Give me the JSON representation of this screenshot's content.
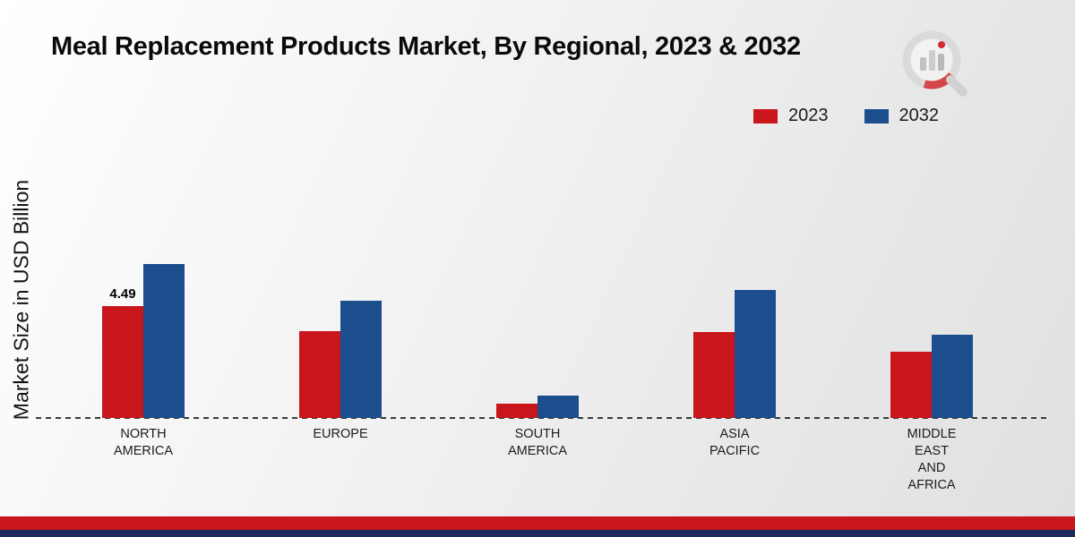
{
  "page": {
    "title": "Meal Replacement Products Market, By Regional, 2023 & 2032",
    "ylabel": "Market Size in USD Billion"
  },
  "chart_data": {
    "type": "bar",
    "title": "Meal Replacement Products Market, By Regional, 2023 & 2032",
    "ylabel": "Market Size in USD Billion",
    "categories": [
      "NORTH AMERICA",
      "EUROPE",
      "SOUTH AMERICA",
      "ASIA PACIFIC",
      "MIDDLE EAST AND AFRICA"
    ],
    "category_labels": [
      "NORTH\nAMERICA",
      "EUROPE",
      "SOUTH\nAMERICA",
      "ASIA\nPACIFIC",
      "MIDDLE\nEAST\nAND\nAFRICA"
    ],
    "series": [
      {
        "name": "2023",
        "color": "#c8161c",
        "values": [
          4.49,
          3.5,
          0.58,
          3.45,
          2.65
        ]
      },
      {
        "name": "2032",
        "color": "#1c4e8e",
        "values": [
          6.2,
          4.7,
          0.9,
          5.15,
          3.35
        ]
      }
    ],
    "ylim": [
      0,
      7
    ],
    "grid": false,
    "legend_position": "top-right",
    "data_labels": [
      {
        "series": 0,
        "category": 0,
        "text": "4.49"
      }
    ]
  },
  "footer": {
    "red_color": "#c8161c",
    "navy_color": "#1b2b5e"
  },
  "icons": {
    "brand_logo": "bar-chart-magnifier-logo"
  }
}
